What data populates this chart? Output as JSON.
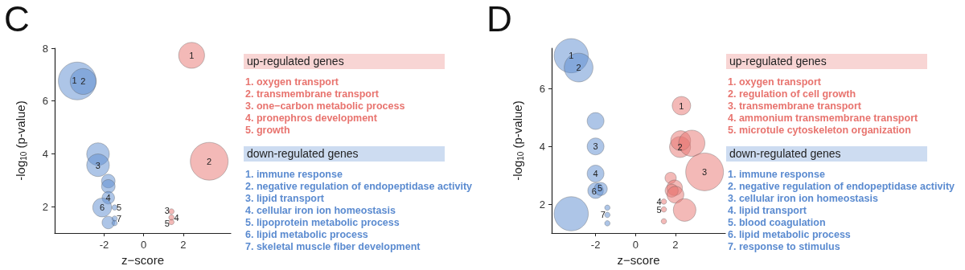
{
  "chart_data": [
    {
      "type": "bubble",
      "title": "C",
      "xlabel": "z−score",
      "ylabel": "-log$_{10}$ (p-value)",
      "xlim": [
        -4.5,
        4.4
      ],
      "xticks": [
        -2,
        0,
        2
      ],
      "ylim": [
        1,
        8
      ],
      "yticks": [
        2,
        4,
        6,
        8
      ],
      "legend": "right",
      "series": [
        {
          "name": "up-regulated genes",
          "color": "#e8746f",
          "x": [
            2.42,
            3.31,
            1.4,
            1.4,
            1.4
          ],
          "values": [
            7.73,
            3.72,
            1.82,
            1.59,
            1.42
          ],
          "sizes": [
            0.47,
            1,
            0.02,
            0.02,
            0.02
          ]
        },
        {
          "name": "down-regulated genes",
          "color": "#5b8bd0",
          "x": [
            -3.36,
            -3.06,
            -2.31,
            -2.31,
            -1.79,
            -1.79,
            -1.79,
            -2.1,
            -1.47,
            -1.79,
            -1.47,
            -1.47
          ],
          "values": [
            6.76,
            6.74,
            3.99,
            3.57,
            2.97,
            2.77,
            2.34,
            1.97,
            1.97,
            1.4,
            1.55,
            1.38
          ],
          "sizes": [
            1,
            0.47,
            0.36,
            0.36,
            0.13,
            0.13,
            0.11,
            0.25,
            0.02,
            0.11,
            0.02,
            0.02
          ]
        }
      ],
      "annotations": [
        {
          "text": "1",
          "x": 2.42,
          "y": 7.73
        },
        {
          "text": "2",
          "x": 3.31,
          "y": 3.72
        },
        {
          "text": "3",
          "x": 1.18,
          "y": 1.86
        },
        {
          "text": "4",
          "x": 1.66,
          "y": 1.59
        },
        {
          "text": "5",
          "x": 1.18,
          "y": 1.38
        },
        {
          "text": "1",
          "x": -3.5,
          "y": 6.78
        },
        {
          "text": "2",
          "x": -3.06,
          "y": 6.74
        },
        {
          "text": "3",
          "x": -2.31,
          "y": 3.57
        },
        {
          "text": "4",
          "x": -1.79,
          "y": 2.34
        },
        {
          "text": "6",
          "x": -2.1,
          "y": 1.97
        },
        {
          "text": "5",
          "x": -1.25,
          "y": 1.97
        },
        {
          "text": "7",
          "x": -1.25,
          "y": 1.55
        },
        "1. oxygen transport",
        "2. transmembrane transport",
        "3. one−carbon metabolic process",
        "4. pronephros development",
        "5. growth",
        "1. immune response",
        "2. negative regulation of endopeptidase activity",
        "3. lipid transport",
        "4. cellular iron ion homeostasis",
        "5. lipoprotein metabolic process",
        "6. lipid metabolic process",
        "7. skeletal muscle fiber development"
      ]
    },
    {
      "type": "bubble",
      "title": "D",
      "xlabel": "z−score",
      "ylabel": "-log$_{10}$ (p-value)",
      "xlim": [
        -4.2,
        4.5
      ],
      "xticks": [
        -2,
        0,
        2
      ],
      "ylim": [
        1,
        7.4
      ],
      "yticks": [
        2,
        4,
        6
      ],
      "legend": "right",
      "series": [
        {
          "name": "up-regulated genes",
          "color": "#e8746f",
          "x": [
            2.3,
            2.23,
            2.26,
            2.82,
            3.46,
            1.76,
            1.96,
            1.81,
            2.0,
            2.46,
            1.42,
            1.42,
            1.42
          ],
          "values": [
            5.41,
            3.98,
            4.2,
            4.11,
            3.12,
            2.91,
            2.57,
            2.47,
            2.33,
            1.8,
            2.09,
            1.82,
            1.41
          ],
          "sizes": [
            0.24,
            0.31,
            0.28,
            0.48,
            1,
            0.09,
            0.17,
            0.12,
            0.2,
            0.36,
            0.02,
            0.02,
            0.02
          ]
        },
        {
          "name": "down-regulated genes",
          "color": "#5b8bd0",
          "x": [
            -3.22,
            -2.85,
            -2.0,
            -2.0,
            -2.0,
            -2.0,
            -1.74,
            -3.22,
            -1.41,
            -1.41,
            -1.41
          ],
          "values": [
            7.14,
            6.73,
            4.88,
            4.0,
            3.06,
            2.47,
            2.53,
            1.67,
            1.88,
            1.63,
            1.34
          ],
          "sizes": [
            0.82,
            0.58,
            0.2,
            0.2,
            0.2,
            0.17,
            0.12,
            0.82,
            0.02,
            0.02,
            0.02
          ]
        }
      ],
      "annotations": [
        {
          "text": "1",
          "x": 2.3,
          "y": 5.41
        },
        {
          "text": "2",
          "x": 2.23,
          "y": 3.98
        },
        {
          "text": "3",
          "x": 3.46,
          "y": 3.12
        },
        {
          "text": "4",
          "x": 1.18,
          "y": 2.09
        },
        {
          "text": "5",
          "x": 1.18,
          "y": 1.82
        },
        {
          "text": "1",
          "x": -3.22,
          "y": 7.14
        },
        {
          "text": "2",
          "x": -2.85,
          "y": 6.73
        },
        {
          "text": "3",
          "x": -2.0,
          "y": 4.0
        },
        {
          "text": "4",
          "x": -2.0,
          "y": 3.06
        },
        {
          "text": "6",
          "x": -2.07,
          "y": 2.44
        },
        {
          "text": "5",
          "x": -1.78,
          "y": 2.56
        },
        {
          "text": "7",
          "x": -1.63,
          "y": 1.63
        },
        "1. oxygen transport",
        "2. regulation of cell growth",
        "3. transmembrane transport",
        "4. ammonium transmembrane transport",
        "5. microtule cytoskeleton organization",
        "1. immune response",
        "2. negative regulation of endopeptidase activity",
        "3. cellular iron ion homeostasis",
        "4. lipid transport",
        "5. blood coagulation",
        "6. lipid metabolic process",
        "7. response to stimulus"
      ]
    }
  ]
}
